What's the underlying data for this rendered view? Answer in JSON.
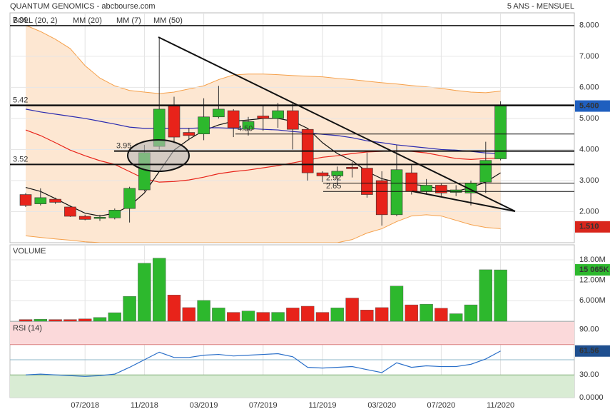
{
  "chart_data": {
    "type": "candlestick",
    "title": "QUANTUM GENOMICS - abcbourse.com",
    "subtitle": "5 ANS - MENSUEL",
    "up_color": "#2db82d",
    "down_color": "#e8231a",
    "categories": [
      null,
      null,
      null,
      null,
      "07/2018",
      null,
      null,
      null,
      "11/2018",
      null,
      null,
      null,
      "03/2019",
      null,
      null,
      null,
      "07/2019",
      null,
      null,
      null,
      "11/2019",
      null,
      null,
      null,
      "03/2020",
      null,
      null,
      null,
      "07/2020",
      null,
      null,
      null,
      "11/2020"
    ],
    "open": [
      2.55,
      2.25,
      2.4,
      2.15,
      1.85,
      1.78,
      1.8,
      2.1,
      2.7,
      4.1,
      5.4,
      4.55,
      4.5,
      5.05,
      5.25,
      4.65,
      5.08,
      5.0,
      5.25,
      4.65,
      3.25,
      3.15,
      3.43,
      3.4,
      3.0,
      1.9,
      3.25,
      2.65,
      2.85,
      2.62,
      2.6,
      2.95,
      3.7
    ],
    "high": [
      2.6,
      2.75,
      2.45,
      2.2,
      1.9,
      1.9,
      2.1,
      2.8,
      4.15,
      7.6,
      5.7,
      4.7,
      5.65,
      6.05,
      5.3,
      5.05,
      5.4,
      5.5,
      5.5,
      4.7,
      3.3,
      3.45,
      3.6,
      3.9,
      3.3,
      4.15,
      3.5,
      3.05,
      2.9,
      2.85,
      3.0,
      4.25,
      5.55
    ],
    "low": [
      2.15,
      2.2,
      2.25,
      1.83,
      1.72,
      1.7,
      1.75,
      1.65,
      2.65,
      4.0,
      4.2,
      4.3,
      4.3,
      5.0,
      4.4,
      4.45,
      4.6,
      4.7,
      4.0,
      3.0,
      2.95,
      2.85,
      3.1,
      2.45,
      1.55,
      1.85,
      2.55,
      2.55,
      2.5,
      2.5,
      2.2,
      2.6,
      3.65
    ],
    "close": [
      2.2,
      2.45,
      2.3,
      1.85,
      1.75,
      1.82,
      2.05,
      2.75,
      3.9,
      5.3,
      4.4,
      4.45,
      5.05,
      5.3,
      4.7,
      4.9,
      5.0,
      5.25,
      4.65,
      3.25,
      3.15,
      3.3,
      3.38,
      2.55,
      1.9,
      3.35,
      2.65,
      2.85,
      2.6,
      2.7,
      2.92,
      3.65,
      5.4
    ],
    "ylim": [
      1,
      8.4
    ],
    "yticks": [
      {
        "value": 2,
        "label": "2.000"
      },
      {
        "value": 3,
        "label": "3.000"
      },
      {
        "value": 4,
        "label": "4.000"
      },
      {
        "value": 5,
        "label": "5.000"
      },
      {
        "value": 6,
        "label": "6.000"
      },
      {
        "value": 7,
        "label": "7.000"
      },
      {
        "value": 8,
        "label": "8.000"
      }
    ],
    "grid": true,
    "bollinger": {
      "name": "BOLL (20, 2)",
      "color": "#f5a04a",
      "fill": "#fde7d2",
      "upper": [
        8.0,
        7.8,
        7.55,
        7.25,
        6.7,
        6.3,
        6.05,
        5.9,
        5.85,
        5.8,
        5.85,
        5.95,
        6.05,
        6.25,
        6.4,
        6.43,
        6.43,
        6.41,
        6.38,
        6.36,
        6.34,
        6.29,
        6.25,
        6.2,
        6.15,
        6.11,
        6.06,
        6.02,
        5.97,
        5.9,
        5.85,
        5.83,
        5.88
      ],
      "lower": [
        1.22,
        1.17,
        1.12,
        1.08,
        1.03,
        1.0,
        1.0,
        1.0,
        1.0,
        1.0,
        1.0,
        1.0,
        1.0,
        1.0,
        1.0,
        1.0,
        1.0,
        1.0,
        1.0,
        1.0,
        1.0,
        1.0,
        1.1,
        1.31,
        1.45,
        1.68,
        1.86,
        1.9,
        1.86,
        1.72,
        1.58,
        1.49,
        1.45
      ]
    },
    "series": [
      {
        "name": "MM (20)",
        "color": "#e8231a",
        "values": [
          4.63,
          4.45,
          4.22,
          3.98,
          3.8,
          3.64,
          3.52,
          3.29,
          3.06,
          2.95,
          2.97,
          3.02,
          3.11,
          3.22,
          3.29,
          3.34,
          3.41,
          3.48,
          3.57,
          3.66,
          3.75,
          3.8,
          3.87,
          3.92,
          3.94,
          3.96,
          3.94,
          3.89,
          3.8,
          3.71,
          3.68,
          3.71,
          3.73
        ]
      },
      {
        "name": "MM (7)",
        "color": "#111111",
        "values": [
          2.78,
          2.65,
          2.42,
          2.18,
          1.95,
          1.86,
          1.95,
          2.18,
          2.6,
          3.29,
          3.98,
          4.33,
          4.61,
          4.79,
          4.91,
          4.95,
          5.0,
          5.0,
          4.91,
          4.68,
          4.22,
          3.87,
          3.64,
          3.29,
          3.06,
          2.95,
          2.88,
          2.83,
          2.72,
          2.65,
          2.78,
          2.95,
          3.25
        ]
      },
      {
        "name": "MM (50)",
        "color": "#2b2bb0",
        "values": [
          5.3,
          5.21,
          5.14,
          5.07,
          5.0,
          4.91,
          4.82,
          4.72,
          4.68,
          4.68,
          4.68,
          4.68,
          4.7,
          4.7,
          4.68,
          4.68,
          4.65,
          4.63,
          4.58,
          4.54,
          4.49,
          4.45,
          4.38,
          4.28,
          4.22,
          4.15,
          4.1,
          4.05,
          4.0,
          3.98,
          3.94,
          3.89,
          3.87
        ]
      }
    ],
    "levels": [
      7.99,
      5.42,
      {
        "value": 4.5,
        "label": "4.50"
      },
      3.95,
      3.52,
      2.92,
      2.65
    ],
    "last_price": {
      "value": 5.4,
      "label": "5.400",
      "color": "#1f5fbf"
    },
    "band_low": {
      "value": 1.51,
      "label": "1.510",
      "color": "#d9261c"
    },
    "volume": {
      "title": "VOLUME",
      "values": [
        0.5,
        0.6,
        0.5,
        0.5,
        0.7,
        1.1,
        2.5,
        7.3,
        17,
        18.5,
        7.7,
        4.0,
        6.1,
        3.9,
        2.6,
        3.0,
        2.6,
        2.6,
        3.9,
        4.4,
        2.6,
        3.9,
        6.8,
        3.3,
        4.0,
        10.3,
        4.8,
        5.0,
        3.8,
        2.2,
        4.8,
        15.1,
        15.065
      ],
      "ylim": [
        0,
        22.4
      ],
      "yticks": [
        {
          "value": 6,
          "label": "6.000M"
        },
        {
          "value": 12,
          "label": "12.00M"
        },
        {
          "value": 18,
          "label": "18.00M"
        }
      ],
      "last": {
        "value": 15.065,
        "label": "15 065K",
        "color": "#2db82d"
      }
    },
    "rsi": {
      "title": "RSI (14)",
      "color": "#2a6fc9",
      "values": [
        30,
        31,
        30,
        29,
        28,
        29,
        31,
        40,
        50,
        60,
        53,
        53,
        56,
        57,
        55,
        56,
        57,
        58,
        54,
        40,
        39,
        40,
        41,
        37,
        33,
        46,
        40,
        42,
        41,
        41,
        44,
        51,
        61.56
      ],
      "ylim": [
        0,
        100
      ],
      "yticks": [
        {
          "value": 0,
          "label": "0.0000"
        },
        {
          "value": 30,
          "label": "30.00"
        },
        {
          "value": 90,
          "label": "90.00"
        }
      ],
      "overbought": 70,
      "oversold": 30,
      "midline": 50,
      "last": {
        "value": 61.56,
        "color": "#1f4f8f"
      }
    }
  }
}
